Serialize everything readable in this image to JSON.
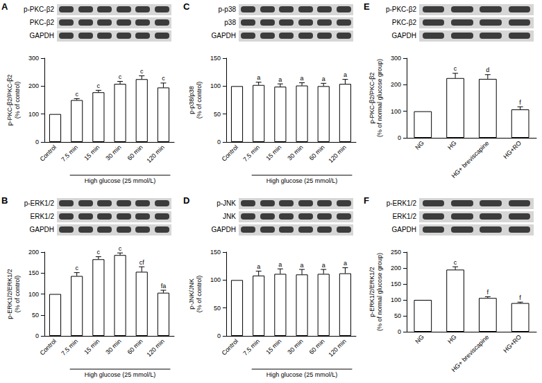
{
  "chart_data": [
    {
      "panel": "A",
      "type": "bar",
      "blots": [
        "p-PKC-β2",
        "PKC-β2",
        "GAPDH"
      ],
      "y_label": "p-PKC-β2/PKC-β2\n(% of control)",
      "x_group_label": "High glucose (25 mmol/L)",
      "categories": [
        "Control",
        "7.5 min",
        "15 min",
        "30 min",
        "60 min",
        "120 min"
      ],
      "values": [
        100,
        150,
        178,
        208,
        225,
        195
      ],
      "errors": [
        0,
        5,
        7,
        9,
        12,
        16
      ],
      "letters": [
        null,
        "c",
        "c",
        "c",
        "c",
        "c"
      ],
      "ylim": [
        0,
        300
      ],
      "yticks": [
        0,
        100,
        200,
        300
      ],
      "grid": false
    },
    {
      "panel": "B",
      "type": "bar",
      "blots": [
        "p-ERK1/2",
        "ERK1/2",
        "GAPDH"
      ],
      "y_label": "p-ERK1/2/ERK1/2\n(% of control)",
      "x_group_label": "High glucose (25 mmol/L)",
      "categories": [
        "Control",
        "7.5 min",
        "15 min",
        "30 min",
        "60 min",
        "120 min"
      ],
      "values": [
        100,
        143,
        183,
        193,
        153,
        103
      ],
      "errors": [
        0,
        8,
        6,
        5,
        12,
        6
      ],
      "letters": [
        null,
        "c",
        "c",
        "c",
        "cf",
        "fa"
      ],
      "ylim": [
        0,
        200
      ],
      "yticks": [
        0,
        50,
        100,
        150,
        200
      ],
      "grid": false
    },
    {
      "panel": "C",
      "type": "bar",
      "blots": [
        "p-p38",
        "p38",
        "GAPDH"
      ],
      "y_label": "p-p38/p38\n(% of control)",
      "x_group_label": "High glucose (25 mmol/L)",
      "categories": [
        "Control",
        "7.5 min",
        "15 min",
        "30 min",
        "60 min",
        "120 min"
      ],
      "values": [
        100,
        102,
        99,
        101,
        100,
        104
      ],
      "errors": [
        0,
        5,
        5,
        5,
        5,
        8
      ],
      "letters": [
        null,
        "a",
        "a",
        "a",
        "a",
        "a"
      ],
      "ylim": [
        0,
        150
      ],
      "yticks": [
        0,
        50,
        100,
        150
      ],
      "grid": false
    },
    {
      "panel": "D",
      "type": "bar",
      "blots": [
        "p-JNK",
        "JNK",
        "GAPDH"
      ],
      "y_label": "p-JNK/JNK\n(% of control)",
      "x_group_label": "High glucose (25 mmol/L)",
      "categories": [
        "Control",
        "7.5 min",
        "15 min",
        "30 min",
        "60 min",
        "120 min"
      ],
      "values": [
        100,
        108,
        111,
        110,
        111,
        112
      ],
      "errors": [
        0,
        8,
        9,
        9,
        8,
        10
      ],
      "letters": [
        null,
        "a",
        "a",
        "a",
        "a",
        "a"
      ],
      "ylim": [
        0,
        150
      ],
      "yticks": [
        0,
        50,
        100,
        150
      ],
      "grid": false
    },
    {
      "panel": "E",
      "type": "bar",
      "blots": [
        "p-PKC-β2",
        "PKC-β2",
        "GAPDH"
      ],
      "y_label": "p-PKC-β2/PKC-β2\n(% of normal glucose group)",
      "x_group_label": null,
      "categories": [
        "NG",
        "HG",
        "HG+ breviscapine",
        "HG+RO"
      ],
      "values": [
        100,
        225,
        222,
        107
      ],
      "errors": [
        0,
        18,
        16,
        10
      ],
      "letters": [
        null,
        "c",
        "d",
        "f"
      ],
      "ylim": [
        0,
        300
      ],
      "yticks": [
        0,
        100,
        200,
        300
      ],
      "grid": false
    },
    {
      "panel": "F",
      "type": "bar",
      "blots": [
        "p-ERK1/2",
        "ERK1/2",
        "GAPDH"
      ],
      "y_label": "p-ERK1/2/ERK1/2\n(% of normal glucose group)",
      "x_group_label": null,
      "categories": [
        "NG",
        "HG",
        "HG+ breviscapine",
        "HG+RO"
      ],
      "values": [
        100,
        195,
        106,
        90
      ],
      "errors": [
        0,
        9,
        4,
        3
      ],
      "letters": [
        null,
        "c",
        "f",
        "f"
      ],
      "ylim": [
        0,
        250
      ],
      "yticks": [
        0,
        50,
        100,
        150,
        200,
        250
      ],
      "grid": false
    }
  ]
}
